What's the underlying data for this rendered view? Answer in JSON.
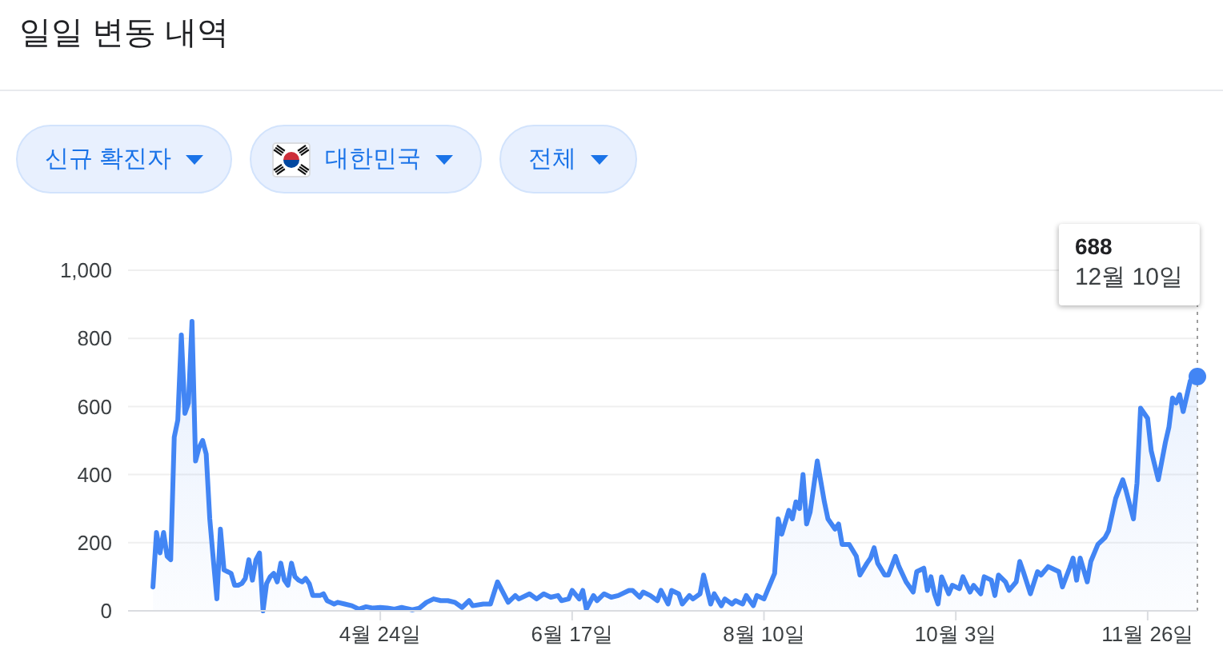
{
  "chart_data": {
    "type": "area",
    "title": "일일 변동 내역",
    "x": [
      "--02-20",
      "--02-21",
      "--02-22",
      "--02-23",
      "--02-24",
      "--02-25",
      "--02-26",
      "--02-27",
      "--02-28",
      "--02-29",
      "--03-01",
      "--03-02",
      "--03-03",
      "--03-04",
      "--03-05",
      "--03-06",
      "--03-07",
      "--03-08",
      "--03-09",
      "--03-10",
      "--03-11",
      "--03-12",
      "--03-13",
      "--03-14",
      "--03-15",
      "--03-16",
      "--03-17",
      "--03-18",
      "--03-19",
      "--03-20",
      "--03-21",
      "--03-22",
      "--03-23",
      "--03-24",
      "--03-25",
      "--03-26",
      "--03-27",
      "--03-28",
      "--03-29",
      "--03-30",
      "--03-31",
      "--04-01",
      "--04-02",
      "--04-03",
      "--04-04",
      "--04-05",
      "--04-06",
      "--04-07",
      "--04-08",
      "--04-09",
      "--04-10",
      "--04-11",
      "--04-12",
      "--04-14",
      "--04-16",
      "--04-18",
      "--04-20",
      "--04-22",
      "--04-24",
      "--04-26",
      "--04-28",
      "--04-30",
      "--05-03",
      "--05-05",
      "--05-07",
      "--05-09",
      "--05-11",
      "--05-13",
      "--05-15",
      "--05-17",
      "--05-19",
      "--05-20",
      "--05-23",
      "--05-25",
      "--05-27",
      "--05-30",
      "--06-01",
      "--06-02",
      "--06-05",
      "--06-07",
      "--06-09",
      "--06-11",
      "--06-13",
      "--06-14",
      "--06-16",
      "--06-17",
      "--06-19",
      "--06-20",
      "--06-21",
      "--06-23",
      "--06-24",
      "--06-26",
      "--06-28",
      "--06-30",
      "--07-03",
      "--07-04",
      "--07-06",
      "--07-07",
      "--07-09",
      "--07-11",
      "--07-12",
      "--07-14",
      "--07-15",
      "--07-17",
      "--07-18",
      "--07-20",
      "--07-21",
      "--07-23",
      "--07-24",
      "--07-26",
      "--07-27",
      "--07-29",
      "--07-30",
      "--08-01",
      "--08-02",
      "--08-04",
      "--08-05",
      "--08-07",
      "--08-08",
      "--08-10",
      "--08-11",
      "--08-13",
      "--08-14",
      "--08-15",
      "--08-17",
      "--08-18",
      "--08-19",
      "--08-20",
      "--08-21",
      "--08-22",
      "--08-23",
      "--08-25",
      "--08-27",
      "--08-28",
      "--08-30",
      "--08-31",
      "--09-01",
      "--09-03",
      "--09-05",
      "--09-06",
      "--09-08",
      "--09-09",
      "--09-10",
      "--09-11",
      "--09-13",
      "--09-14",
      "--09-16",
      "--09-17",
      "--09-19",
      "--09-21",
      "--09-22",
      "--09-24",
      "--09-25",
      "--09-26",
      "--09-27",
      "--09-28",
      "--09-29",
      "--10-01",
      "--10-02",
      "--10-04",
      "--10-05",
      "--10-07",
      "--10-08",
      "--10-10",
      "--10-11",
      "--10-13",
      "--10-14",
      "--10-15",
      "--10-17",
      "--10-18",
      "--10-20",
      "--10-21",
      "--10-22",
      "--10-24",
      "--10-26",
      "--10-27",
      "--10-29",
      "--10-30",
      "--11-01",
      "--11-02",
      "--11-04",
      "--11-05",
      "--11-06",
      "--11-07",
      "--11-09",
      "--11-10",
      "--11-12",
      "--11-14",
      "--11-15",
      "--11-17",
      "--11-19",
      "--11-20",
      "--11-22",
      "--11-23",
      "--11-24",
      "--11-26",
      "--11-27",
      "--11-29",
      "--12-01",
      "--12-02",
      "--12-03",
      "--12-04",
      "--12-05",
      "--12-06",
      "--12-08",
      "--12-09",
      "--12-10"
    ],
    "series": [
      {
        "color": "#4285f4",
        "values": [
          70,
          230,
          170,
          230,
          160,
          150,
          510,
          560,
          810,
          580,
          610,
          850,
          440,
          480,
          500,
          460,
          270,
          150,
          35,
          240,
          120,
          115,
          110,
          75,
          75,
          80,
          95,
          150,
          90,
          150,
          170,
          0,
          80,
          100,
          110,
          85,
          140,
          90,
          75,
          140,
          100,
          90,
          85,
          95,
          80,
          45,
          45,
          45,
          50,
          30,
          25,
          20,
          25,
          20,
          15,
          5,
          12,
          8,
          10,
          8,
          5,
          10,
          3,
          8,
          25,
          35,
          30,
          30,
          25,
          10,
          30,
          15,
          20,
          20,
          85,
          25,
          45,
          35,
          50,
          35,
          50,
          40,
          45,
          30,
          35,
          60,
          35,
          60,
          5,
          45,
          30,
          50,
          40,
          45,
          60,
          60,
          40,
          55,
          45,
          30,
          60,
          20,
          60,
          50,
          20,
          45,
          35,
          50,
          105,
          20,
          50,
          15,
          35,
          20,
          30,
          20,
          45,
          15,
          45,
          35,
          60,
          110,
          270,
          225,
          295,
          270,
          320,
          300,
          400,
          255,
          290,
          440,
          320,
          270,
          240,
          255,
          195,
          195,
          160,
          105,
          140,
          155,
          185,
          140,
          105,
          105,
          160,
          130,
          85,
          55,
          115,
          125,
          60,
          100,
          50,
          20,
          100,
          50,
          75,
          65,
          100,
          55,
          75,
          50,
          100,
          90,
          45,
          105,
          85,
          60,
          85,
          145,
          115,
          50,
          115,
          105,
          130,
          125,
          115,
          70,
          125,
          155,
          90,
          155,
          85,
          145,
          195,
          215,
          235,
          330,
          385,
          350,
          270,
          375,
          595,
          565,
          470,
          385,
          495,
          540,
          625,
          610,
          635,
          585,
          675,
          685,
          688
        ]
      },
      {
        "type": "scatter",
        "color": "#4285f4",
        "x": [
          "--12-10"
        ],
        "values": [
          688
        ]
      }
    ],
    "xlim": [
      "--02-13",
      "--12-10"
    ],
    "xticks": [
      {
        "value": "--04-24",
        "label": "4월 24일"
      },
      {
        "value": "--06-17",
        "label": "6월 17일"
      },
      {
        "value": "--08-10",
        "label": "8월 10일"
      },
      {
        "value": "--10-03",
        "label": "10월 3일"
      },
      {
        "value": "--11-26",
        "label": "11월 26일"
      }
    ],
    "ylim": [
      0,
      1000
    ],
    "yticks": [
      0,
      200,
      400,
      600,
      800,
      {
        "value": 1000,
        "label": "1,000"
      }
    ],
    "grid": "y",
    "ref_lines": [
      {
        "axis": "x",
        "value": "--12-10",
        "line_style": "dotted",
        "color": "#9e9e9e"
      }
    ],
    "annotations": [
      "신규 확진자",
      "대한민국",
      "전체",
      "688",
      "12월 10일"
    ]
  }
}
